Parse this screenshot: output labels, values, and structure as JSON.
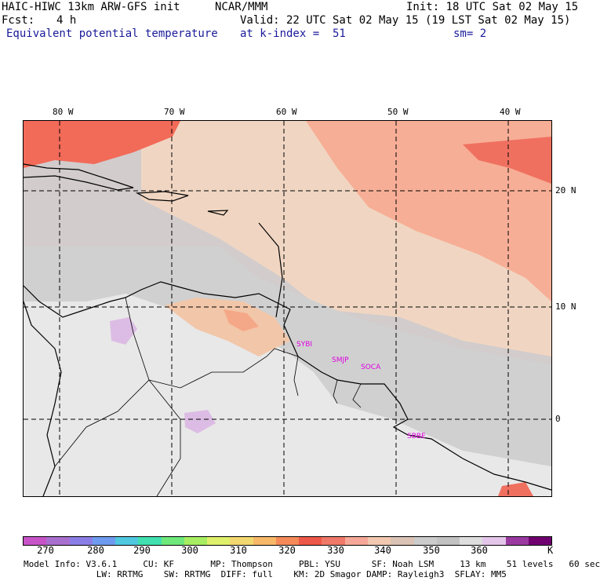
{
  "header": {
    "model": "HAIC-HIWC 13km ARW-GFS init",
    "org": "NCAR/MMM",
    "init": "Init: 18 UTC Sat 02 May 15",
    "fcst_label": "Fcst:",
    "fcst_value": "4 h",
    "valid": "Valid: 22 UTC Sat 02 May 15 (19 LST Sat 02 May 15)",
    "field": "Equivalent potential temperature",
    "level": "at k-index =  51",
    "smooth": "sm= 2"
  },
  "map": {
    "lon_labels": [
      "80 W",
      "70 W",
      "60 W",
      "50 W",
      "40 W"
    ],
    "lat_labels": [
      "20 N",
      "10 N",
      "0"
    ],
    "stations": [
      "SYBI",
      "SMJP",
      "SOCA",
      "SBBE"
    ]
  },
  "colorbar": {
    "colors": [
      "#c853c8",
      "#a96fcf",
      "#8a7ee6",
      "#6e9bf0",
      "#4fc8e0",
      "#40e0b0",
      "#6ee87a",
      "#a8ee62",
      "#dff06a",
      "#f2d870",
      "#f7b868",
      "#f58a58",
      "#ee5848",
      "#f07868",
      "#f6a898",
      "#f2c8b0",
      "#dac2b4",
      "#cccccc",
      "#c2c2c2",
      "#dedede",
      "#e4c6ea",
      "#9a3aa0",
      "#700070"
    ],
    "labels": [
      "270",
      "280",
      "290",
      "300",
      "310",
      "320",
      "330",
      "340",
      "350",
      "360"
    ],
    "unit": "K"
  },
  "footer": {
    "line1": "Model Info: V3.6.1     CU: KF       MP: Thompson     PBL: YSU      SF: Noah LSM     13 km    51 levels   60 sec",
    "line2": "              LW: RRTMG    SW: RRTMG  DIFF: full    KM: 2D Smagor DAMP: Rayleigh3  SFLAY: MM5"
  }
}
